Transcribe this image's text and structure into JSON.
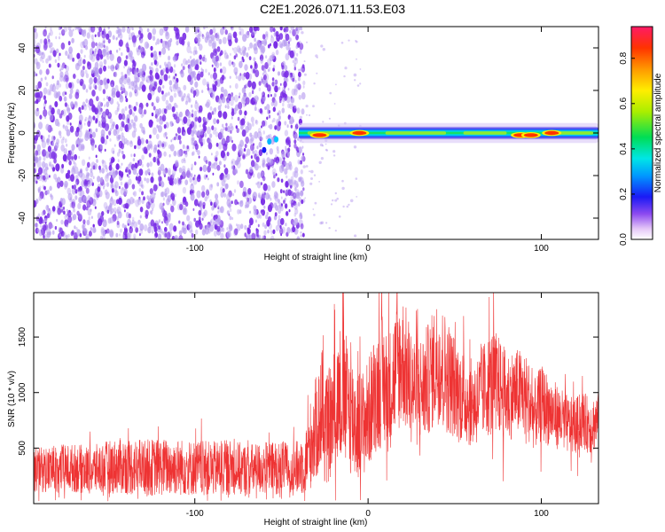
{
  "title": "C2E1.2026.071.11.53.E03",
  "colors": {
    "spectro_bg_dot": "#b79cf0",
    "spectro_dot": "#7a2ee6",
    "snr_line": "#ee3333"
  },
  "chart_data": [
    {
      "type": "heatmap",
      "title": "C2E1.2026.071.11.53.E03",
      "xlabel": "Height of straight line (km)",
      "ylabel": "Frequency (Hz)",
      "xlim": [
        -193,
        133
      ],
      "ylim": [
        -50,
        50
      ],
      "x_ticks": [
        -100,
        0,
        100
      ],
      "y_ticks": [
        -40,
        -20,
        0,
        20,
        40
      ],
      "colorbar": {
        "label": "Normalized spectral amplitude",
        "range": [
          0,
          0.94
        ],
        "ticks": [
          0.0,
          0.2,
          0.4,
          0.6,
          0.8
        ],
        "tick_labels": [
          "0.0",
          "0.2",
          "0.4",
          "0.6",
          "0.8"
        ]
      },
      "noise_region_x": [
        -193,
        -40
      ],
      "signal_band": {
        "x_range": [
          -40,
          133
        ],
        "freq_center": 0,
        "freq_halfwidth": 3,
        "peaks": [
          {
            "x": -28,
            "freq": -1,
            "amplitude": 0.9
          },
          {
            "x": -5,
            "freq": 0,
            "amplitude": 0.92
          },
          {
            "x": 88,
            "freq": -1,
            "amplitude": 0.88
          },
          {
            "x": 94,
            "freq": -1,
            "amplitude": 0.9
          },
          {
            "x": 106,
            "freq": 0,
            "amplitude": 0.9
          }
        ],
        "grid": false
      }
    },
    {
      "type": "line",
      "xlabel": "Height of straight line (km)",
      "ylabel": "SNR (10 * v/v)",
      "xlim": [
        -193,
        133
      ],
      "ylim": [
        0,
        1900
      ],
      "x_ticks": [
        -100,
        0,
        100
      ],
      "y_ticks": [
        500,
        1000,
        1500
      ],
      "grid": false,
      "series": [
        {
          "x": [
            -193,
            -180,
            -170,
            -160,
            -150,
            -140,
            -130,
            -120,
            -110,
            -100,
            -90,
            -80,
            -70,
            -60,
            -50,
            -40,
            -36,
            -32,
            -28,
            -24,
            -20,
            -16,
            -12,
            -8,
            -4,
            0,
            4,
            8,
            12,
            16,
            20,
            24,
            28,
            32,
            36,
            40,
            44,
            48,
            52,
            56,
            60,
            64,
            68,
            72,
            76,
            80,
            84,
            88,
            92,
            96,
            100,
            104,
            108,
            112,
            116,
            120,
            124,
            128,
            133
          ],
          "y_mid": [
            300,
            310,
            320,
            300,
            330,
            340,
            320,
            330,
            330,
            320,
            310,
            330,
            300,
            320,
            320,
            320,
            380,
            600,
            750,
            650,
            800,
            1000,
            900,
            750,
            700,
            800,
            1000,
            1100,
            1000,
            1200,
            1300,
            1100,
            1000,
            1050,
            1150,
            1300,
            1200,
            1100,
            1000,
            950,
            900,
            950,
            1050,
            1100,
            1050,
            950,
            1000,
            1000,
            950,
            800,
            900,
            850,
            800,
            750,
            700,
            700,
            750,
            700,
            750
          ],
          "y_spread": [
            200,
            220,
            220,
            220,
            240,
            260,
            260,
            260,
            260,
            250,
            250,
            250,
            240,
            240,
            240,
            250,
            300,
            450,
            500,
            500,
            550,
            650,
            600,
            550,
            500,
            500,
            550,
            600,
            550,
            600,
            600,
            550,
            500,
            500,
            520,
            580,
            550,
            500,
            450,
            420,
            400,
            420,
            450,
            500,
            450,
            420,
            400,
            400,
            380,
            320,
            350,
            330,
            300,
            280,
            260,
            260,
            260,
            260,
            260
          ]
        }
      ]
    }
  ]
}
